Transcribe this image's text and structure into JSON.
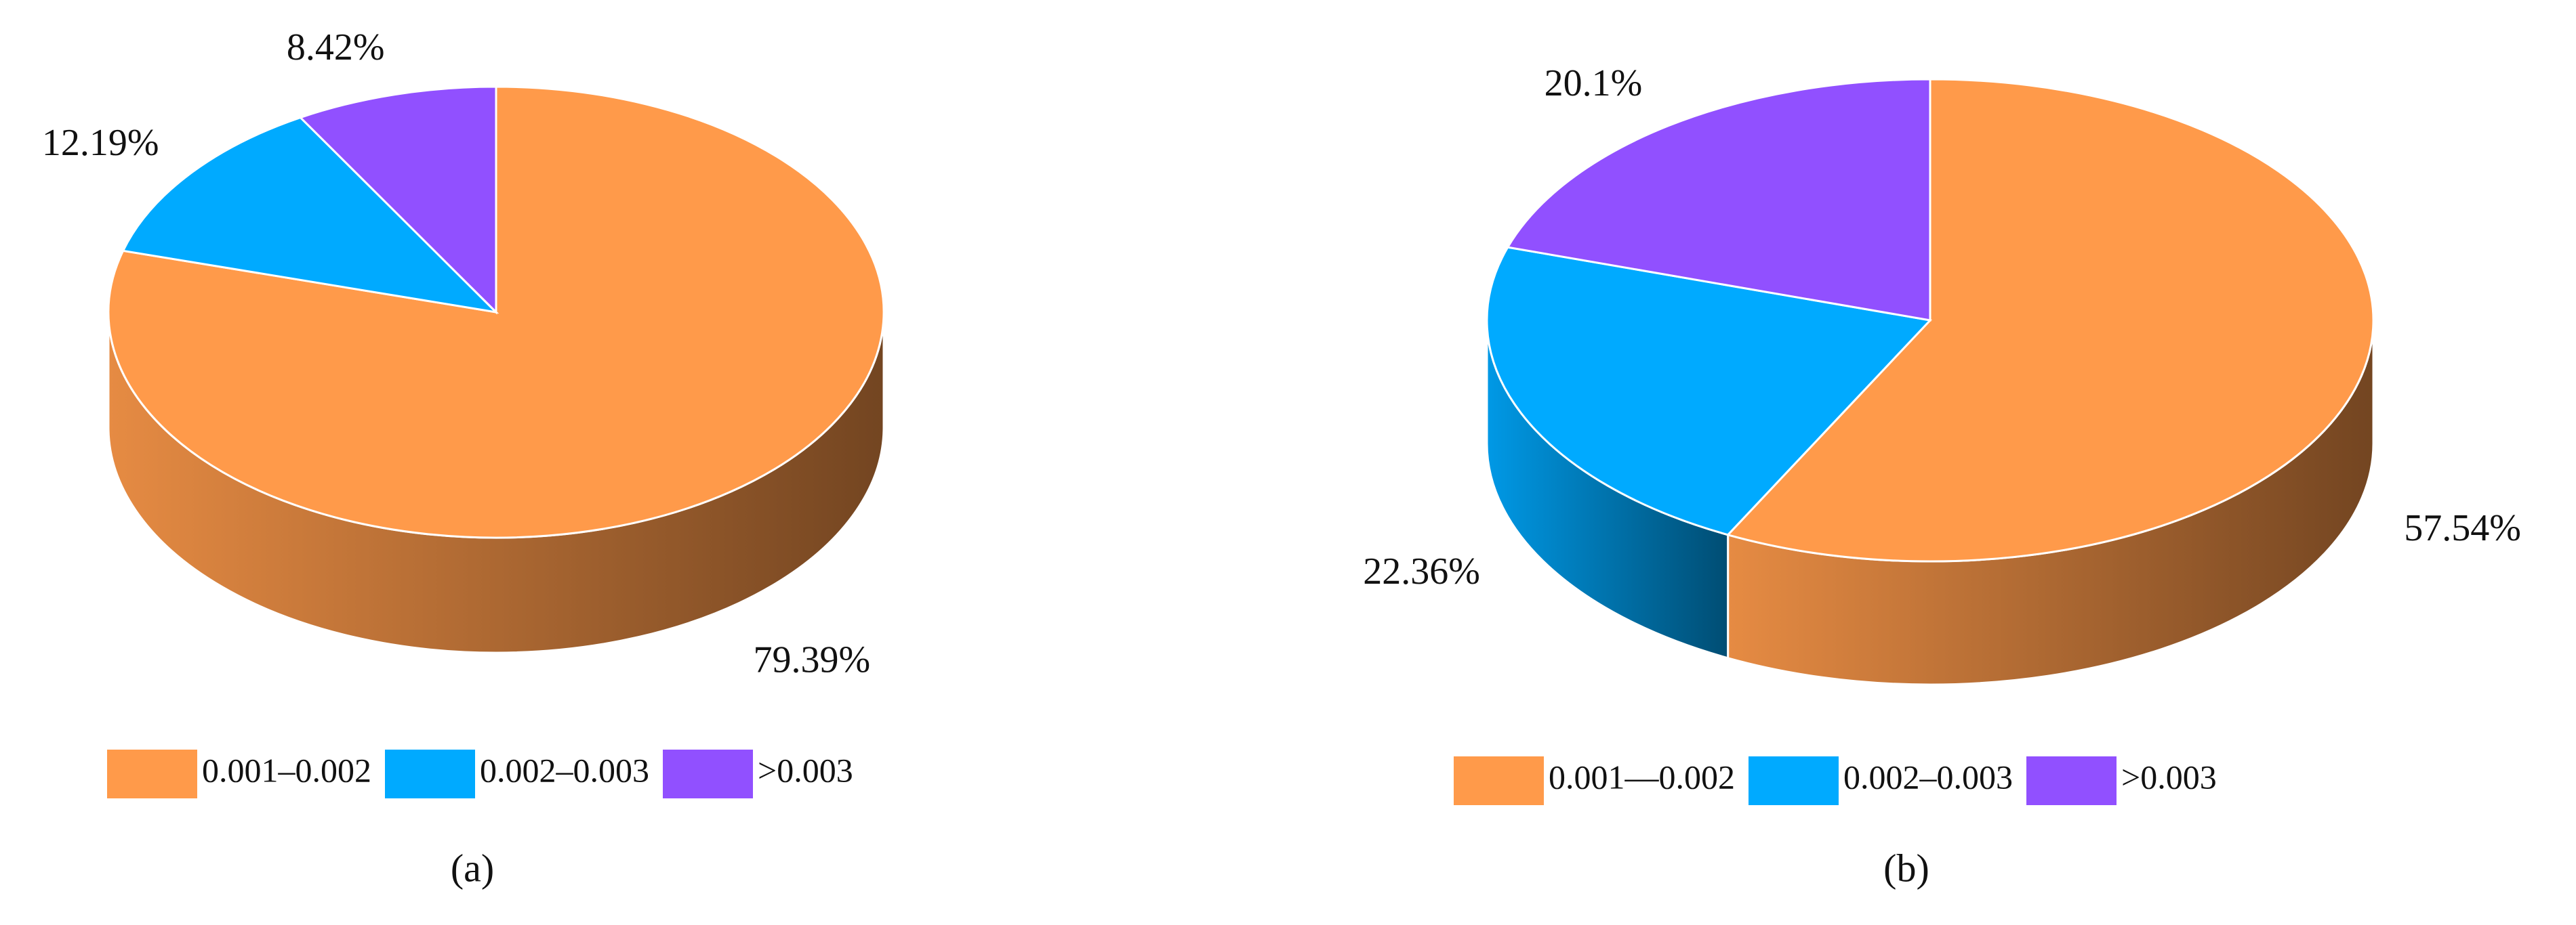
{
  "chart_data": [
    {
      "type": "pie",
      "caption": "(a)",
      "categories": [
        "0.001–0.002",
        "0.002–0.003",
        ">0.003"
      ],
      "values": [
        79.39,
        12.19,
        8.42
      ],
      "value_labels": [
        "79.39%",
        "12.19%",
        "8.42%"
      ],
      "colors": [
        "#ff9a4a",
        "#00aaff",
        "#9150ff"
      ]
    },
    {
      "type": "pie",
      "caption": "(b)",
      "categories": [
        "0.001—0.002",
        "0.002–0.003",
        ">0.003"
      ],
      "values": [
        57.54,
        22.36,
        20.1
      ],
      "value_labels": [
        "57.54%",
        "22.36%",
        "20.1%"
      ],
      "colors": [
        "#ff9a4a",
        "#00aaff",
        "#9150ff"
      ]
    }
  ]
}
